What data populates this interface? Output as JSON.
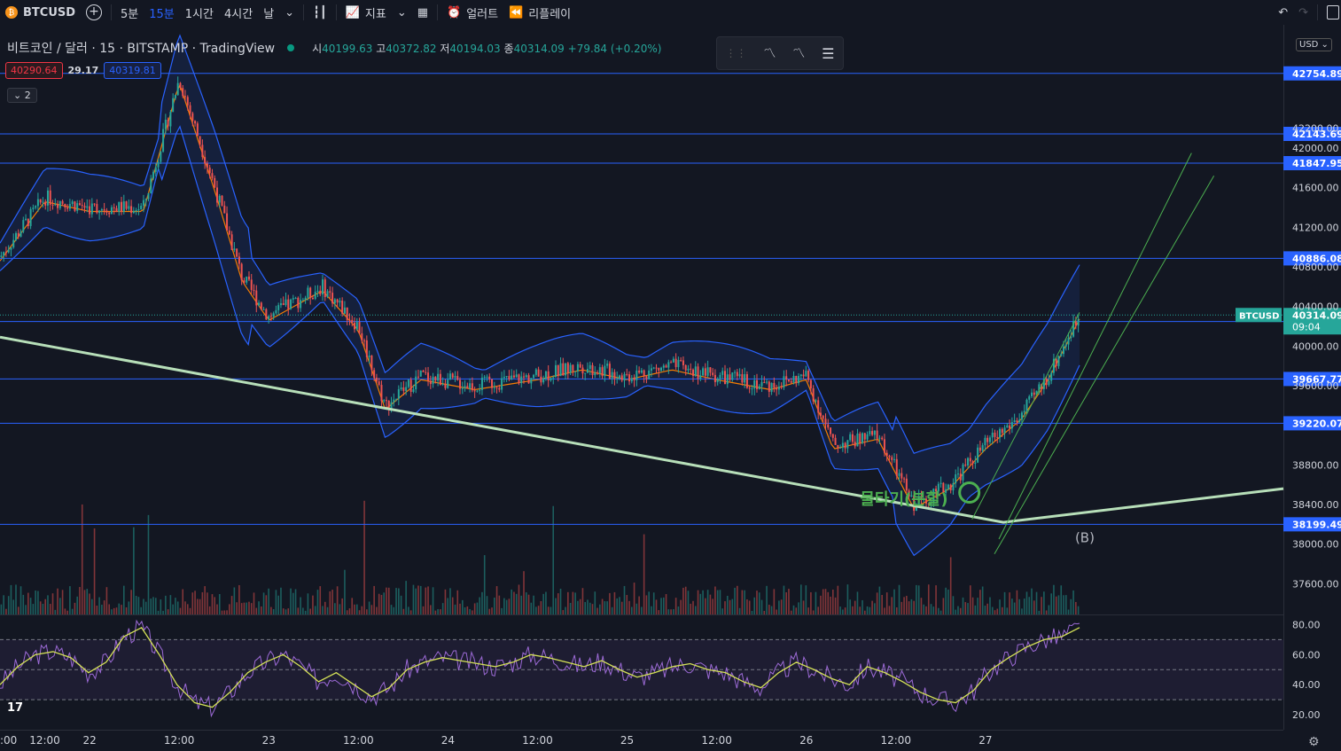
{
  "toolbar": {
    "symbol": "BTCUSD",
    "timeframes": [
      "5분",
      "15분",
      "1시간",
      "4시간",
      "날"
    ],
    "active_timeframe": "15분",
    "indicators_label": "지표",
    "alert_label": "얼러트",
    "replay_label": "리플레이"
  },
  "legend": {
    "title": "비트코인 / 달러 · 15 · BITSTAMP · TradingView",
    "open_label": "시",
    "open": "40199.63",
    "high_label": "고",
    "high": "40372.82",
    "low_label": "저",
    "low": "40194.03",
    "close_label": "종",
    "close": "40314.09",
    "change": "+79.84 (+0.20%)"
  },
  "price_tags": {
    "bid": "40290.64",
    "spread": "29.17",
    "ask": "40319.81"
  },
  "indicator_count": "2",
  "currency": "USD",
  "chart_data": {
    "type": "line",
    "title": "비트코인 / 달러 · 15 · BITSTAMP · TradingView",
    "x_ticks": [
      ":00",
      "12:00",
      "22",
      "12:00",
      "23",
      "12:00",
      "24",
      "12:00",
      "25",
      "12:00",
      "26",
      "12:00",
      "27"
    ],
    "y_ticks": [
      "42200.00",
      "42000.00",
      "41600.00",
      "41200.00",
      "40800.00",
      "40400.00",
      "40000.00",
      "39600.00",
      "38800.00",
      "38400.00",
      "38000.00",
      "37600.00"
    ],
    "ylim": [
      37400,
      43000
    ],
    "horizontal_levels": [
      42754.89,
      42143.69,
      41847.95,
      40886.08,
      40247.73,
      39667.77,
      39220.07,
      38199.49
    ],
    "current_price": {
      "label": "BTCUSD",
      "value": "40314.09",
      "countdown": "09:04"
    },
    "price_series_approx": [
      {
        "x": 0,
        "y": 40900
      },
      {
        "x": 0.5,
        "y": 41500
      },
      {
        "x": 1,
        "y": 41400
      },
      {
        "x": 1.6,
        "y": 41400
      },
      {
        "x": 2,
        "y": 42700
      },
      {
        "x": 2.4,
        "y": 41600
      },
      {
        "x": 2.7,
        "y": 40700
      },
      {
        "x": 3,
        "y": 40300
      },
      {
        "x": 3.6,
        "y": 40600
      },
      {
        "x": 4,
        "y": 40200
      },
      {
        "x": 4.3,
        "y": 39400
      },
      {
        "x": 4.7,
        "y": 39700
      },
      {
        "x": 5.3,
        "y": 39600
      },
      {
        "x": 6,
        "y": 39700
      },
      {
        "x": 6.5,
        "y": 39800
      },
      {
        "x": 7,
        "y": 39700
      },
      {
        "x": 7.5,
        "y": 39800
      },
      {
        "x": 8,
        "y": 39700
      },
      {
        "x": 8.6,
        "y": 39600
      },
      {
        "x": 9,
        "y": 39700
      },
      {
        "x": 9.3,
        "y": 39000
      },
      {
        "x": 9.8,
        "y": 39100
      },
      {
        "x": 10.2,
        "y": 38400
      },
      {
        "x": 10.6,
        "y": 38600
      },
      {
        "x": 11,
        "y": 39000
      },
      {
        "x": 11.4,
        "y": 39300
      },
      {
        "x": 11.7,
        "y": 39700
      },
      {
        "x": 12.05,
        "y": 40314
      }
    ],
    "annotations": [
      {
        "text": "물타기(분할)",
        "color": "#4caf50"
      },
      {
        "text": "(B)",
        "color": "#b2b5be"
      }
    ],
    "rsi": {
      "levels": [
        70,
        50,
        30
      ],
      "y_ticks": [
        "80.00",
        "60.00",
        "40.00",
        "20.00"
      ],
      "last": 78
    }
  }
}
